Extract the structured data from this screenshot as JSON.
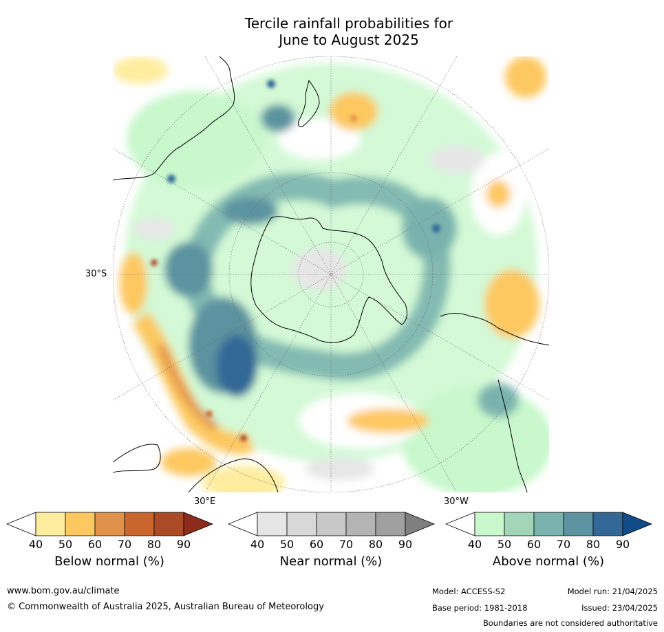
{
  "title_line1": "Tercile rainfall probabilities for",
  "title_line2": "June to August 2025",
  "map": {
    "lat_label": "30°S",
    "lon_label_east": "30°E",
    "lon_label_west": "30°W"
  },
  "legends": [
    {
      "label": "Below normal (%)",
      "ticks": [
        "40",
        "50",
        "60",
        "70",
        "80",
        "90"
      ],
      "colors": [
        "#ffffff",
        "#feed9f",
        "#fdc860",
        "#e0924a",
        "#c8662e",
        "#ab4a26",
        "#8c2d1c"
      ]
    },
    {
      "label": "Near normal (%)",
      "ticks": [
        "40",
        "50",
        "60",
        "70",
        "80",
        "90"
      ],
      "colors": [
        "#ffffff",
        "#e6e6e6",
        "#d8d8d8",
        "#c8c8c8",
        "#b4b4b4",
        "#a0a0a0",
        "#7f7f7f"
      ]
    },
    {
      "label": "Above normal (%)",
      "ticks": [
        "40",
        "50",
        "60",
        "70",
        "80",
        "90"
      ],
      "colors": [
        "#ffffff",
        "#c8f8cc",
        "#a3d6b8",
        "#7ab3ae",
        "#5c93a0",
        "#336896",
        "#124c86"
      ]
    }
  ],
  "footer": {
    "website": "www.bom.gov.au/climate",
    "copyright": "© Commonwealth of Australia 2025, Australian Bureau of Meteorology",
    "model": "Model: ACCESS-S2",
    "base_period": "Base period: 1981-2018",
    "model_run": "Model run: 21/04/2025",
    "issued": "Issued: 23/04/2025",
    "disclaimer": "Boundaries are not considered authoritative"
  }
}
